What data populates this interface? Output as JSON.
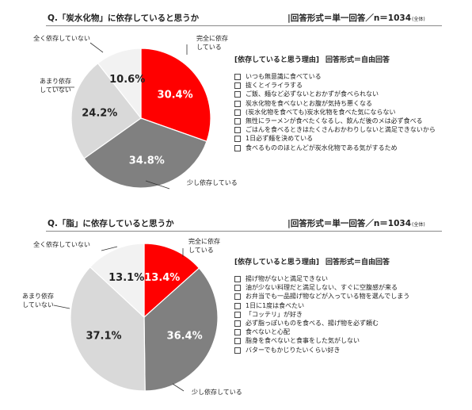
{
  "chart_data": [
    {
      "type": "pie",
      "title": "Q.「炭水化物」に依存していると思うか",
      "response_format": "|回答形式＝単一回答／n＝1034",
      "sample_note": "(全体)",
      "categories": [
        "完全に依存している",
        "少し依存している",
        "あまり依存していない",
        "全く依存していない"
      ],
      "values": [
        30.4,
        34.8,
        24.2,
        10.6
      ],
      "value_labels": [
        "30.4%",
        "34.8%",
        "24.2%",
        "10.6%"
      ],
      "reasons_title": "[依存していると思う理由]",
      "reasons_format": "回答形式＝自由回答",
      "reasons": [
        "いつも無意識に食べている",
        "抜くとイライラする",
        "ご飯、麺など必ずないとおかずが食べられない",
        "炭水化物を食べないとお腹が気持ち悪くなる",
        "(炭水化物を食べても)炭水化物を食べた気にならない",
        "無性にラーメンが食べたくなるし、飲んだ後のメは必ず食べる",
        "ごはんを食べるときはたくさんおかわりしないと満足できないから",
        "1日必ず麺を決めている",
        "食べるもののほとんどが炭水化物である気がするため"
      ]
    },
    {
      "type": "pie",
      "title": "Q.「脂」に依存していると思うか",
      "response_format": "|回答形式＝単一回答／n＝1034",
      "sample_note": "(全体)",
      "categories": [
        "完全に依存している",
        "少し依存している",
        "あまり依存していない",
        "全く依存していない"
      ],
      "values": [
        13.4,
        36.4,
        37.1,
        13.1
      ],
      "value_labels": [
        "13.4%",
        "36.4%",
        "37.1%",
        "13.1%"
      ],
      "reasons_title": "[依存していると思う理由]",
      "reasons_format": "回答形式＝自由回答",
      "reasons": [
        "揚げ物がないと満足できない",
        "油が少ない料理だと満足しない、すぐに空腹感が来る",
        "お弁当でも一品揚げ物などが入っている物を選んでしまう",
        "1日に1度は食べたい",
        "「コッテリ」が好き",
        "必ず脂っぽいものを食べる、揚げ物を必ず頼む",
        "食べないと心配",
        "脂身を食べないと食事をした気がしない",
        "バターでもかじりたいくらい好き"
      ]
    }
  ],
  "colors": {
    "slices": [
      "#ff0000",
      "#808080",
      "#d9d9d9",
      "#f2f2f2"
    ],
    "value_text": [
      "#ffffff",
      "#ffffff",
      "#222222",
      "#222222"
    ],
    "slice_stroke": "#ffffff",
    "leader": "#333333"
  }
}
